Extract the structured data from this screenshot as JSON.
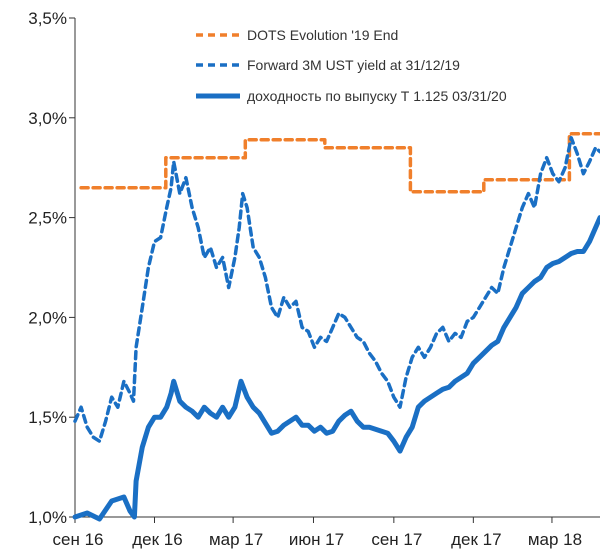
{
  "chart_data": {
    "type": "line",
    "ylim": [
      1.0,
      3.5
    ],
    "yticks": [
      "1,0%",
      "1,5%",
      "2,0%",
      "2,5%",
      "3,0%",
      "3,5%"
    ],
    "xticks": [
      "сен 16",
      "дек 16",
      "мар 17",
      "июн 17",
      "сен 17",
      "дек 17",
      "мар 18"
    ],
    "xrange": [
      "2016-09-01",
      "2018-04-25"
    ],
    "grid": false,
    "legend_position": "top-right",
    "colors": {
      "dots": "#f07f2b",
      "forward": "#1a6fc4",
      "yield": "#1a6fc4"
    },
    "series": [
      {
        "name": "DOTS Evolution '19 End",
        "style": "dashed-orange",
        "points": [
          [
            "2016-09-08",
            2.65
          ],
          [
            "2016-12-14",
            2.65
          ],
          [
            "2016-12-14",
            2.8
          ],
          [
            "2017-03-15",
            2.8
          ],
          [
            "2017-03-15",
            2.89
          ],
          [
            "2017-06-14",
            2.89
          ],
          [
            "2017-06-14",
            2.85
          ],
          [
            "2017-09-20",
            2.85
          ],
          [
            "2017-09-20",
            2.63
          ],
          [
            "2017-12-13",
            2.63
          ],
          [
            "2017-12-13",
            2.69
          ],
          [
            "2018-03-21",
            2.69
          ],
          [
            "2018-03-21",
            2.92
          ],
          [
            "2018-04-25",
            2.92
          ]
        ]
      },
      {
        "name": "Forward 3M UST yield at 31/12/19",
        "style": "dashed-blue",
        "points": [
          [
            "2016-09-01",
            1.48
          ],
          [
            "2016-09-08",
            1.55
          ],
          [
            "2016-09-15",
            1.45
          ],
          [
            "2016-09-22",
            1.4
          ],
          [
            "2016-09-29",
            1.38
          ],
          [
            "2016-10-06",
            1.48
          ],
          [
            "2016-10-13",
            1.6
          ],
          [
            "2016-10-20",
            1.55
          ],
          [
            "2016-10-27",
            1.68
          ],
          [
            "2016-11-03",
            1.62
          ],
          [
            "2016-11-07",
            1.58
          ],
          [
            "2016-11-10",
            1.85
          ],
          [
            "2016-11-17",
            2.05
          ],
          [
            "2016-11-24",
            2.25
          ],
          [
            "2016-12-01",
            2.38
          ],
          [
            "2016-12-08",
            2.4
          ],
          [
            "2016-12-15",
            2.55
          ],
          [
            "2016-12-20",
            2.65
          ],
          [
            "2016-12-23",
            2.78
          ],
          [
            "2016-12-30",
            2.62
          ],
          [
            "2017-01-06",
            2.7
          ],
          [
            "2017-01-13",
            2.55
          ],
          [
            "2017-01-20",
            2.45
          ],
          [
            "2017-01-27",
            2.3
          ],
          [
            "2017-02-03",
            2.35
          ],
          [
            "2017-02-10",
            2.25
          ],
          [
            "2017-02-17",
            2.3
          ],
          [
            "2017-02-24",
            2.15
          ],
          [
            "2017-03-03",
            2.3
          ],
          [
            "2017-03-08",
            2.45
          ],
          [
            "2017-03-12",
            2.62
          ],
          [
            "2017-03-17",
            2.55
          ],
          [
            "2017-03-24",
            2.35
          ],
          [
            "2017-03-31",
            2.3
          ],
          [
            "2017-04-07",
            2.2
          ],
          [
            "2017-04-14",
            2.05
          ],
          [
            "2017-04-21",
            2.0
          ],
          [
            "2017-04-28",
            2.1
          ],
          [
            "2017-05-05",
            2.05
          ],
          [
            "2017-05-12",
            2.08
          ],
          [
            "2017-05-19",
            1.95
          ],
          [
            "2017-05-26",
            1.93
          ],
          [
            "2017-06-02",
            1.85
          ],
          [
            "2017-06-09",
            1.9
          ],
          [
            "2017-06-16",
            1.88
          ],
          [
            "2017-06-23",
            1.95
          ],
          [
            "2017-06-30",
            2.02
          ],
          [
            "2017-07-07",
            2.0
          ],
          [
            "2017-07-14",
            1.95
          ],
          [
            "2017-07-21",
            1.9
          ],
          [
            "2017-07-28",
            1.88
          ],
          [
            "2017-08-04",
            1.82
          ],
          [
            "2017-08-11",
            1.78
          ],
          [
            "2017-08-18",
            1.72
          ],
          [
            "2017-08-25",
            1.68
          ],
          [
            "2017-09-01",
            1.6
          ],
          [
            "2017-09-08",
            1.55
          ],
          [
            "2017-09-15",
            1.7
          ],
          [
            "2017-09-22",
            1.8
          ],
          [
            "2017-09-29",
            1.85
          ],
          [
            "2017-10-06",
            1.8
          ],
          [
            "2017-10-13",
            1.85
          ],
          [
            "2017-10-20",
            1.92
          ],
          [
            "2017-10-27",
            1.95
          ],
          [
            "2017-11-03",
            1.88
          ],
          [
            "2017-11-10",
            1.92
          ],
          [
            "2017-11-17",
            1.9
          ],
          [
            "2017-11-24",
            1.98
          ],
          [
            "2017-12-01",
            2.0
          ],
          [
            "2017-12-08",
            2.05
          ],
          [
            "2017-12-15",
            2.1
          ],
          [
            "2017-12-22",
            2.15
          ],
          [
            "2017-12-29",
            2.12
          ],
          [
            "2018-01-05",
            2.25
          ],
          [
            "2018-01-12",
            2.35
          ],
          [
            "2018-01-19",
            2.45
          ],
          [
            "2018-01-26",
            2.55
          ],
          [
            "2018-02-02",
            2.62
          ],
          [
            "2018-02-09",
            2.55
          ],
          [
            "2018-02-16",
            2.72
          ],
          [
            "2018-02-23",
            2.8
          ],
          [
            "2018-03-02",
            2.72
          ],
          [
            "2018-03-09",
            2.68
          ],
          [
            "2018-03-16",
            2.75
          ],
          [
            "2018-03-23",
            2.9
          ],
          [
            "2018-03-30",
            2.82
          ],
          [
            "2018-04-06",
            2.72
          ],
          [
            "2018-04-13",
            2.78
          ],
          [
            "2018-04-20",
            2.85
          ],
          [
            "2018-04-25",
            2.83
          ]
        ]
      },
      {
        "name": "доходность по выпуску Т 1.125 03/31/20",
        "style": "solid-blue",
        "points": [
          [
            "2016-09-01",
            1.0
          ],
          [
            "2016-09-15",
            1.02
          ],
          [
            "2016-09-29",
            0.99
          ],
          [
            "2016-10-13",
            1.08
          ],
          [
            "2016-10-27",
            1.1
          ],
          [
            "2016-11-03",
            1.03
          ],
          [
            "2016-11-08",
            1.0
          ],
          [
            "2016-11-10",
            1.18
          ],
          [
            "2016-11-17",
            1.35
          ],
          [
            "2016-11-24",
            1.45
          ],
          [
            "2016-12-01",
            1.5
          ],
          [
            "2016-12-08",
            1.5
          ],
          [
            "2016-12-15",
            1.55
          ],
          [
            "2016-12-20",
            1.62
          ],
          [
            "2016-12-23",
            1.68
          ],
          [
            "2016-12-30",
            1.58
          ],
          [
            "2017-01-06",
            1.55
          ],
          [
            "2017-01-13",
            1.53
          ],
          [
            "2017-01-20",
            1.5
          ],
          [
            "2017-01-27",
            1.55
          ],
          [
            "2017-02-03",
            1.52
          ],
          [
            "2017-02-10",
            1.5
          ],
          [
            "2017-02-17",
            1.55
          ],
          [
            "2017-02-24",
            1.5
          ],
          [
            "2017-03-03",
            1.55
          ],
          [
            "2017-03-10",
            1.68
          ],
          [
            "2017-03-17",
            1.6
          ],
          [
            "2017-03-24",
            1.55
          ],
          [
            "2017-03-31",
            1.52
          ],
          [
            "2017-04-07",
            1.47
          ],
          [
            "2017-04-14",
            1.42
          ],
          [
            "2017-04-21",
            1.43
          ],
          [
            "2017-04-28",
            1.46
          ],
          [
            "2017-05-05",
            1.48
          ],
          [
            "2017-05-12",
            1.5
          ],
          [
            "2017-05-19",
            1.46
          ],
          [
            "2017-05-26",
            1.46
          ],
          [
            "2017-06-02",
            1.43
          ],
          [
            "2017-06-09",
            1.45
          ],
          [
            "2017-06-16",
            1.42
          ],
          [
            "2017-06-23",
            1.43
          ],
          [
            "2017-06-30",
            1.48
          ],
          [
            "2017-07-07",
            1.51
          ],
          [
            "2017-07-14",
            1.53
          ],
          [
            "2017-07-21",
            1.48
          ],
          [
            "2017-07-28",
            1.45
          ],
          [
            "2017-08-04",
            1.45
          ],
          [
            "2017-08-11",
            1.44
          ],
          [
            "2017-08-18",
            1.43
          ],
          [
            "2017-08-25",
            1.42
          ],
          [
            "2017-09-01",
            1.38
          ],
          [
            "2017-09-08",
            1.33
          ],
          [
            "2017-09-15",
            1.4
          ],
          [
            "2017-09-22",
            1.45
          ],
          [
            "2017-09-29",
            1.55
          ],
          [
            "2017-10-06",
            1.58
          ],
          [
            "2017-10-13",
            1.6
          ],
          [
            "2017-10-20",
            1.62
          ],
          [
            "2017-10-27",
            1.64
          ],
          [
            "2017-11-03",
            1.65
          ],
          [
            "2017-11-10",
            1.68
          ],
          [
            "2017-11-17",
            1.7
          ],
          [
            "2017-11-24",
            1.72
          ],
          [
            "2017-12-01",
            1.77
          ],
          [
            "2017-12-08",
            1.8
          ],
          [
            "2017-12-15",
            1.83
          ],
          [
            "2017-12-22",
            1.86
          ],
          [
            "2017-12-29",
            1.88
          ],
          [
            "2018-01-05",
            1.95
          ],
          [
            "2018-01-12",
            2.0
          ],
          [
            "2018-01-19",
            2.05
          ],
          [
            "2018-01-26",
            2.12
          ],
          [
            "2018-02-02",
            2.15
          ],
          [
            "2018-02-09",
            2.18
          ],
          [
            "2018-02-16",
            2.2
          ],
          [
            "2018-02-23",
            2.25
          ],
          [
            "2018-03-02",
            2.27
          ],
          [
            "2018-03-09",
            2.28
          ],
          [
            "2018-03-16",
            2.3
          ],
          [
            "2018-03-23",
            2.32
          ],
          [
            "2018-03-30",
            2.33
          ],
          [
            "2018-04-06",
            2.33
          ],
          [
            "2018-04-13",
            2.38
          ],
          [
            "2018-04-20",
            2.45
          ],
          [
            "2018-04-25",
            2.5
          ]
        ]
      }
    ]
  }
}
